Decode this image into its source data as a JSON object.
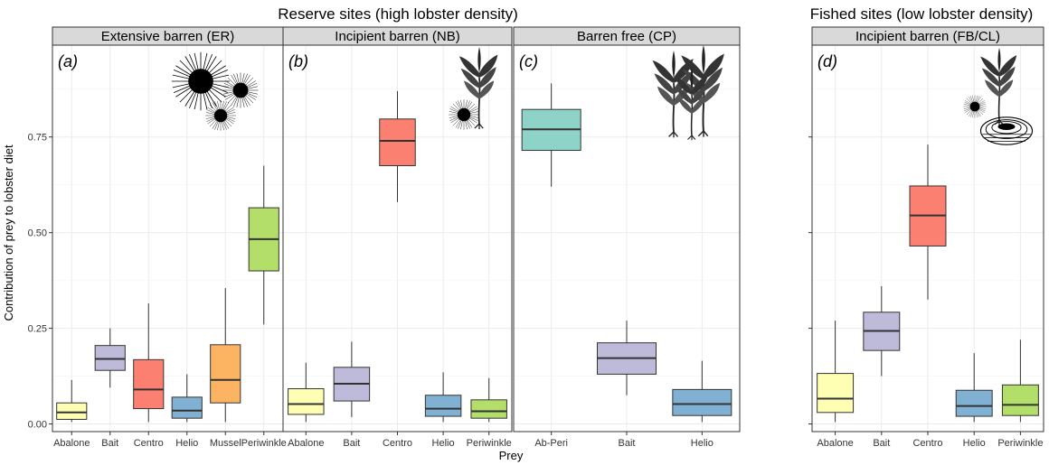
{
  "chart_data": [
    {
      "type": "box",
      "panel_label": "(a)",
      "strip": "Extensive barren (ER)",
      "group_title": "Reserve sites (high lobster density)",
      "categories": [
        "Abalone",
        "Bait",
        "Centro",
        "Helio",
        "Mussel",
        "Periwinkle"
      ],
      "boxes": [
        {
          "category": "Abalone",
          "color": "#FFFFB3",
          "min": 0.005,
          "q1": 0.012,
          "median": 0.03,
          "q3": 0.055,
          "max": 0.115
        },
        {
          "category": "Bait",
          "color": "#BEBADA",
          "min": 0.095,
          "q1": 0.14,
          "median": 0.17,
          "q3": 0.205,
          "max": 0.25
        },
        {
          "category": "Centro",
          "color": "#FB8072",
          "min": 0.005,
          "q1": 0.04,
          "median": 0.09,
          "q3": 0.168,
          "max": 0.315
        },
        {
          "category": "Helio",
          "color": "#80B1D3",
          "min": 0.005,
          "q1": 0.015,
          "median": 0.035,
          "q3": 0.07,
          "max": 0.13
        },
        {
          "category": "Mussel",
          "color": "#FDB462",
          "min": 0.005,
          "q1": 0.055,
          "median": 0.115,
          "q3": 0.207,
          "max": 0.355
        },
        {
          "category": "Periwinkle",
          "color": "#B3DE69",
          "min": 0.26,
          "q1": 0.4,
          "median": 0.483,
          "q3": 0.565,
          "max": 0.675
        }
      ],
      "ylim": [
        -0.02,
        0.99
      ],
      "yticks": [
        "0.00",
        "0.25",
        "0.50",
        "0.75"
      ]
    },
    {
      "type": "box",
      "panel_label": "(b)",
      "strip": "Incipient barren (NB)",
      "categories": [
        "Abalone",
        "Bait",
        "Centro",
        "Helio",
        "Periwinkle"
      ],
      "boxes": [
        {
          "category": "Abalone",
          "color": "#FFFFB3",
          "min": 0.005,
          "q1": 0.025,
          "median": 0.052,
          "q3": 0.092,
          "max": 0.16
        },
        {
          "category": "Bait",
          "color": "#BEBADA",
          "min": 0.018,
          "q1": 0.06,
          "median": 0.105,
          "q3": 0.148,
          "max": 0.215
        },
        {
          "category": "Centro",
          "color": "#FB8072",
          "min": 0.58,
          "q1": 0.675,
          "median": 0.74,
          "q3": 0.797,
          "max": 0.87
        },
        {
          "category": "Helio",
          "color": "#80B1D3",
          "min": 0.005,
          "q1": 0.02,
          "median": 0.04,
          "q3": 0.075,
          "max": 0.135
        },
        {
          "category": "Periwinkle",
          "color": "#B3DE69",
          "min": 0.005,
          "q1": 0.015,
          "median": 0.033,
          "q3": 0.063,
          "max": 0.12
        }
      ],
      "ylim": [
        -0.02,
        0.99
      ]
    },
    {
      "type": "box",
      "panel_label": "(c)",
      "strip": "Barren free (CP)",
      "categories": [
        "Ab-Peri",
        "Bait",
        "Helio"
      ],
      "boxes": [
        {
          "category": "Ab-Peri",
          "color": "#8DD3C7",
          "min": 0.62,
          "q1": 0.715,
          "median": 0.77,
          "q3": 0.822,
          "max": 0.89
        },
        {
          "category": "Bait",
          "color": "#BEBADA",
          "min": 0.075,
          "q1": 0.13,
          "median": 0.172,
          "q3": 0.212,
          "max": 0.27
        },
        {
          "category": "Helio",
          "color": "#80B1D3",
          "min": 0.005,
          "q1": 0.022,
          "median": 0.052,
          "q3": 0.09,
          "max": 0.165
        }
      ],
      "ylim": [
        -0.02,
        0.99
      ]
    },
    {
      "type": "box",
      "panel_label": "(d)",
      "strip": "Incipient barren (FB/CL)",
      "group_title": "Fished sites (low lobster density)",
      "categories": [
        "Abalone",
        "Bait",
        "Centro",
        "Helio",
        "Periwinkle"
      ],
      "boxes": [
        {
          "category": "Abalone",
          "color": "#FFFFB3",
          "min": 0.005,
          "q1": 0.03,
          "median": 0.066,
          "q3": 0.132,
          "max": 0.27
        },
        {
          "category": "Bait",
          "color": "#BEBADA",
          "min": 0.125,
          "q1": 0.192,
          "median": 0.243,
          "q3": 0.292,
          "max": 0.36
        },
        {
          "category": "Centro",
          "color": "#FB8072",
          "min": 0.325,
          "q1": 0.465,
          "median": 0.545,
          "q3": 0.622,
          "max": 0.73
        },
        {
          "category": "Helio",
          "color": "#80B1D3",
          "min": 0.005,
          "q1": 0.02,
          "median": 0.047,
          "q3": 0.088,
          "max": 0.185
        },
        {
          "category": "Periwinkle",
          "color": "#B3DE69",
          "min": 0.005,
          "q1": 0.022,
          "median": 0.05,
          "q3": 0.102,
          "max": 0.22
        }
      ],
      "ylim": [
        -0.02,
        0.99
      ]
    }
  ],
  "axes": {
    "ylabel": "Contribution of prey to lobster diet",
    "xlabel": "Prey"
  },
  "colors": {
    "panel_bg": "#FFFFFF",
    "grid": "#EBEBEB",
    "strip_bg": "#D9D9D9",
    "border": "#333333"
  },
  "icons": {
    "a": [
      "urchin-icon",
      "urchin-icon",
      "urchin-icon"
    ],
    "b": [
      "urchin-icon",
      "kelp-icon"
    ],
    "c": [
      "kelp-icon"
    ],
    "d": [
      "urchin-icon",
      "kelp-icon",
      "abalone-shell-icon"
    ]
  }
}
